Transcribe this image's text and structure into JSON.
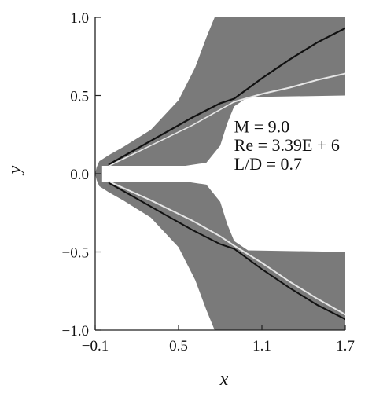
{
  "chart_data": {
    "type": "contour",
    "title": "",
    "xlabel": "x",
    "ylabel": "y",
    "xlim": [
      -0.1,
      1.7
    ],
    "ylim": [
      -1.0,
      1.0
    ],
    "xticks": [
      "-0.1",
      "0.5",
      "1.1",
      "1.7"
    ],
    "yticks": [
      "1.0",
      "0.5",
      "0.0",
      "-0.5",
      "-1.0"
    ],
    "grid": false,
    "annotations": [
      {
        "text": "M = 9.0",
        "x": 0.9,
        "y": 0.3
      },
      {
        "text": "Re = 3.39E + 6",
        "x": 0.9,
        "y": 0.18
      },
      {
        "text": "L/D = 0.7",
        "x": 0.9,
        "y": 0.06
      }
    ],
    "colors": {
      "field": "#7a7a7a",
      "shock": "#111111",
      "shock_light": "#e6e6e6",
      "body": "#ffffff"
    },
    "field_upper_boundary": [
      [
        -0.1,
        0.0
      ],
      [
        -0.09,
        0.04
      ],
      [
        -0.07,
        0.08
      ],
      [
        0.0,
        0.12
      ],
      [
        0.1,
        0.17
      ],
      [
        0.3,
        0.28
      ],
      [
        0.5,
        0.47
      ],
      [
        0.62,
        0.68
      ],
      [
        0.7,
        0.87
      ],
      [
        0.76,
        1.0
      ],
      [
        1.7,
        1.0
      ]
    ],
    "cavity_upper_lip": [
      [
        -0.05,
        0.05
      ],
      [
        0.2,
        0.05
      ],
      [
        0.55,
        0.05
      ],
      [
        0.7,
        0.07
      ],
      [
        0.8,
        0.18
      ],
      [
        0.85,
        0.32
      ],
      [
        0.9,
        0.43
      ],
      [
        1.0,
        0.49
      ],
      [
        1.7,
        0.5
      ]
    ],
    "shock_upper": [
      [
        0.0,
        0.06
      ],
      [
        0.2,
        0.16
      ],
      [
        0.4,
        0.26
      ],
      [
        0.6,
        0.36
      ],
      [
        0.8,
        0.45
      ],
      [
        0.9,
        0.48
      ],
      [
        1.1,
        0.61
      ],
      [
        1.3,
        0.73
      ],
      [
        1.5,
        0.84
      ],
      [
        1.7,
        0.93
      ]
    ],
    "shock_upper_secondary": [
      [
        0.0,
        0.05
      ],
      [
        0.3,
        0.18
      ],
      [
        0.6,
        0.31
      ],
      [
        0.8,
        0.41
      ],
      [
        0.9,
        0.46
      ]
    ],
    "shock_upper_light": [
      [
        0.9,
        0.46
      ],
      [
        1.1,
        0.51
      ],
      [
        1.3,
        0.55
      ],
      [
        1.5,
        0.6
      ],
      [
        1.7,
        0.64
      ]
    ],
    "shock_lower": [
      [
        0.0,
        -0.06
      ],
      [
        0.2,
        -0.16
      ],
      [
        0.4,
        -0.26
      ],
      [
        0.6,
        -0.36
      ],
      [
        0.8,
        -0.45
      ],
      [
        0.9,
        -0.48
      ],
      [
        1.1,
        -0.61
      ],
      [
        1.3,
        -0.73
      ],
      [
        1.5,
        -0.84
      ],
      [
        1.7,
        -0.93
      ]
    ],
    "shock_lower_light": [
      [
        0.0,
        -0.05
      ],
      [
        0.3,
        -0.17
      ],
      [
        0.6,
        -0.3
      ],
      [
        0.8,
        -0.4
      ],
      [
        0.9,
        -0.46
      ],
      [
        1.1,
        -0.57
      ],
      [
        1.3,
        -0.69
      ],
      [
        1.5,
        -0.8
      ],
      [
        1.7,
        -0.9
      ]
    ]
  }
}
